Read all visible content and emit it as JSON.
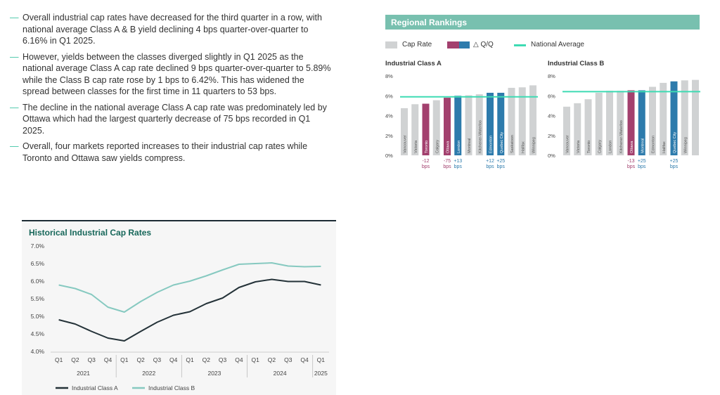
{
  "bullets": [
    "Overall industrial cap rates have decreased for the third quarter in a row, with national average Class A & B yield declining 4 bps quarter-over-quarter to 6.16% in Q1 2025.",
    "However, yields between the classes diverged slightly in Q1 2025 as the national average Class A cap rate declined 9 bps quarter-over-quarter to 5.89% while the Class B cap rate rose by 1 bps to 6.42%. This has widened the spread between classes for the first time in 11 quarters to 53 bps.",
    "The decline in the national average Class A cap rate was predominately led by Ottawa which had the largest quarterly decrease of 75 bps recorded in Q1 2025.",
    "Overall, four markets reported increases to their industrial cap rates while Toronto and Ottawa saw yields compress."
  ],
  "historical": {
    "title": "Historical Industrial Cap Rates",
    "legend_a": "Industrial Class A",
    "legend_b": "Industrial Class B"
  },
  "regional": {
    "title": "Regional Rankings",
    "legend_cap_rate": "Cap Rate",
    "legend_qq": "△ Q/Q",
    "legend_national": "National Average",
    "panel_a_title": "Industrial Class A",
    "panel_b_title": "Industrial Class B"
  },
  "colors": {
    "class_a_line": "#243238",
    "class_b_line": "#86c9c0",
    "bar_grey": "#d0d2d3",
    "bar_decrease": "#a3406e",
    "bar_increase": "#2d7bac",
    "national_avg": "#3edbb3",
    "header_bg": "#78c0af",
    "title_green": "#17675a"
  },
  "chart_data": [
    {
      "type": "line",
      "title": "Historical Industrial Cap Rates",
      "x": [
        "Q1",
        "Q2",
        "Q3",
        "Q4",
        "Q1",
        "Q2",
        "Q3",
        "Q4",
        "Q1",
        "Q2",
        "Q3",
        "Q4",
        "Q1",
        "Q2",
        "Q3",
        "Q4",
        "Q1"
      ],
      "year_groups": [
        {
          "label": "2021",
          "span": 4
        },
        {
          "label": "2022",
          "span": 4
        },
        {
          "label": "2023",
          "span": 4
        },
        {
          "label": "2024",
          "span": 4
        },
        {
          "label": "2025",
          "span": 1
        }
      ],
      "y_ticks": [
        "4.0%",
        "4.5%",
        "5.0%",
        "5.5%",
        "6.0%",
        "6.5%",
        "7.0%"
      ],
      "ylim": [
        4.0,
        7.0
      ],
      "grid": false,
      "legend": "bottom",
      "series": [
        {
          "name": "Industrial Class A",
          "values": [
            4.9,
            4.78,
            4.57,
            4.38,
            4.3,
            4.57,
            4.83,
            5.03,
            5.13,
            5.36,
            5.52,
            5.82,
            5.98,
            6.05,
            5.99,
            5.99,
            5.89
          ]
        },
        {
          "name": "Industrial Class B",
          "values": [
            5.89,
            5.79,
            5.62,
            5.26,
            5.12,
            5.42,
            5.68,
            5.89,
            6.0,
            6.15,
            6.32,
            6.48,
            6.5,
            6.52,
            6.43,
            6.41,
            6.42
          ]
        }
      ]
    },
    {
      "type": "bar",
      "title": "Industrial Class A",
      "categories": [
        "Vancouver",
        "Victoria",
        "Toronto",
        "Calgary",
        "Ottawa",
        "London",
        "Montreal",
        "Kitchener-Waterloo",
        "Edmonton",
        "Quebec City",
        "Saskatoon",
        "Halifax",
        "Winnipeg"
      ],
      "values": [
        4.75,
        5.15,
        5.2,
        5.55,
        5.8,
        6.0,
        6.05,
        6.15,
        6.3,
        6.3,
        6.8,
        6.85,
        7.05
      ],
      "qq_change": [
        "",
        "",
        "-12 bps",
        "",
        "-75 bps",
        "+13 bps",
        "",
        "",
        "+12 bps",
        "+25 bps",
        "",
        "",
        ""
      ],
      "national_average": 5.89,
      "y_ticks": [
        "0%",
        "2%",
        "4%",
        "6%",
        "8%"
      ],
      "ylim": [
        0,
        8
      ]
    },
    {
      "type": "bar",
      "title": "Industrial Class B",
      "categories": [
        "Vancouver",
        "Victoria",
        "Toronto",
        "Calgary",
        "London",
        "Kitchener-Waterloo",
        "Ottawa",
        "Montreal",
        "Edmonton",
        "Halifax",
        "Quebec City",
        "Winnipeg"
      ],
      "values": [
        4.9,
        5.25,
        5.65,
        6.3,
        6.5,
        6.5,
        6.55,
        6.55,
        6.9,
        7.3,
        7.45,
        7.55
      ],
      "extra_bar_value": 7.6,
      "labels": [
        "Vancouver",
        "Victoria",
        "Toronto",
        "Calgary",
        "London",
        "Kitchener-Waterloo",
        "Ottawa",
        "Montreal",
        "Edmonton",
        "Halifax",
        "Quebec City",
        "Winnipeg"
      ],
      "qq_change": [
        "",
        "",
        "",
        "",
        "",
        "",
        "-13 bps",
        "+25 bps",
        "",
        "",
        "+25 bps",
        ""
      ],
      "national_average": 6.42,
      "y_ticks": [
        "0%",
        "2%",
        "4%",
        "6%",
        "8%"
      ],
      "ylim": [
        0,
        8
      ]
    }
  ]
}
